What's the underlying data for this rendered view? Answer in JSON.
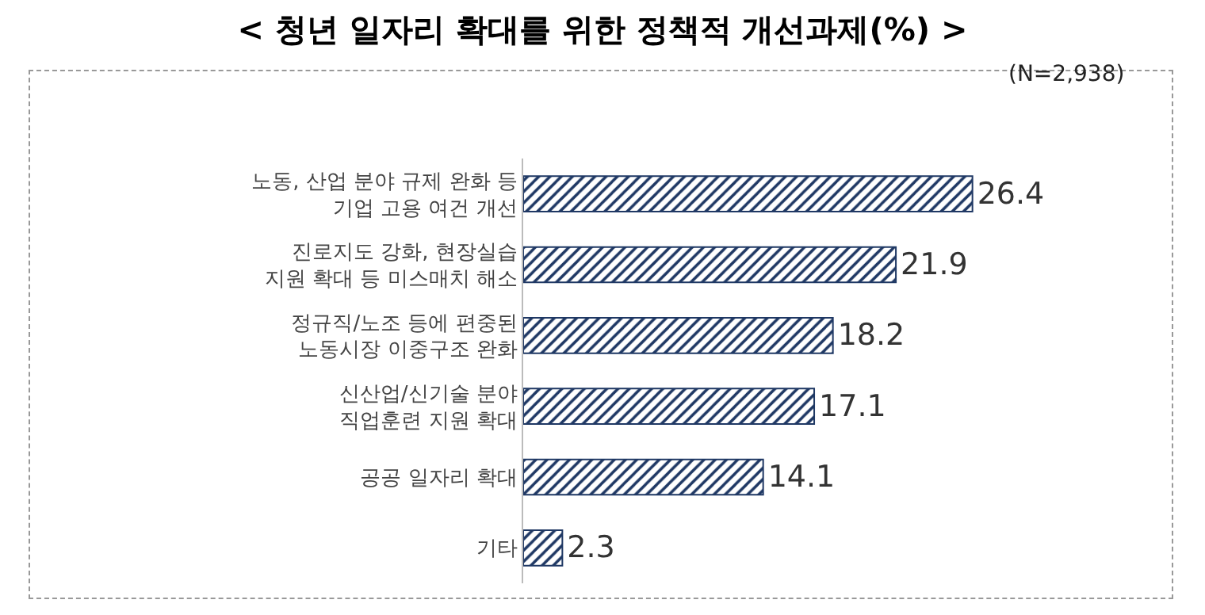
{
  "chart_data": {
    "type": "bar",
    "orientation": "horizontal",
    "title": "< 청년 일자리 확대를 위한 정책적 개선과제(%) >",
    "annotations": [
      "(N=2,938)"
    ],
    "categories": [
      "노동, 산업 분야 규제 완화 등\n기업 고용 여건 개선",
      "진로지도 강화, 현장실습\n지원 확대 등 미스매치 해소",
      "정규직/노조 등에 편중된\n노동시장 이중구조 완화",
      "신산업/신기술 분야\n직업훈련 지원 확대",
      "공공 일자리 확대",
      "기타"
    ],
    "values": [
      26.4,
      21.9,
      18.2,
      17.1,
      14.1,
      2.3
    ],
    "color": "#1f3864",
    "data_labels": true,
    "grid": false,
    "legend": false
  }
}
